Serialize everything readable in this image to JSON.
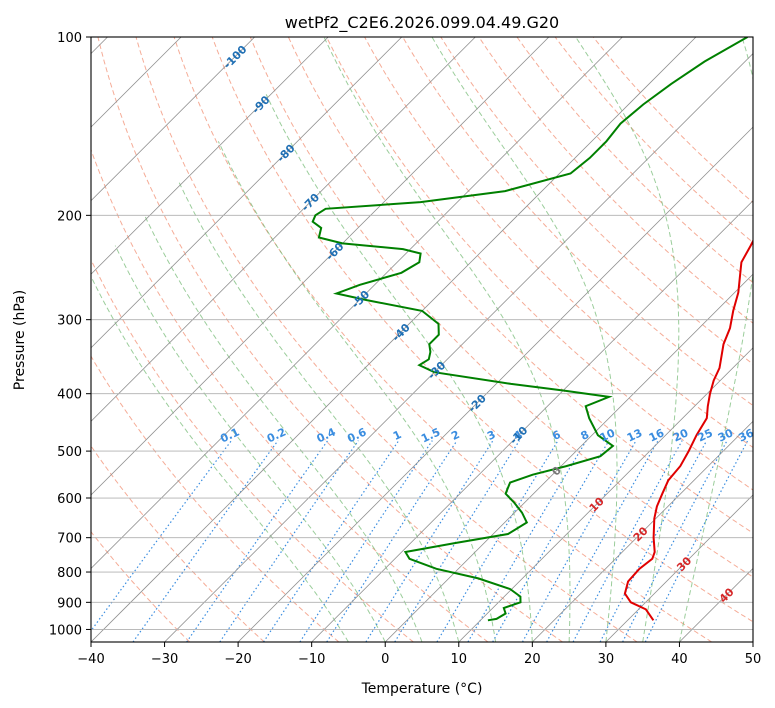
{
  "chart_data": {
    "type": "line",
    "chart_kind": "Skew-T log-P diagram",
    "title": "wetPf2_C2E6.2026.099.04.49.G20",
    "xlabel": "Temperature (°C)",
    "ylabel": "Pressure (hPa)",
    "x_range": [
      -40,
      50
    ],
    "y_range": [
      1050,
      100
    ],
    "y_scale": "log",
    "x_ticks": [
      "−40",
      "−30",
      "−20",
      "−10",
      "0",
      "10",
      "20",
      "30",
      "40",
      "50"
    ],
    "y_ticks": [
      "100",
      "200",
      "300",
      "400",
      "500",
      "600",
      "700",
      "800",
      "900",
      "1000"
    ],
    "grid": true,
    "legend": "none",
    "series": [
      {
        "color": "#e00000",
        "points": [
          [
            33.5,
            965
          ],
          [
            31,
            925
          ],
          [
            28,
            900
          ],
          [
            26,
            870
          ],
          [
            24.8,
            830
          ],
          [
            24.6,
            790
          ],
          [
            25,
            760
          ],
          [
            24.4,
            740
          ],
          [
            22.3,
            700
          ],
          [
            19.8,
            650
          ],
          [
            18.5,
            620
          ],
          [
            17.5,
            590
          ],
          [
            16.5,
            560
          ],
          [
            16.2,
            530
          ],
          [
            15.3,
            500
          ],
          [
            14.2,
            470
          ],
          [
            13.3,
            440
          ],
          [
            11.8,
            420
          ],
          [
            10.4,
            400
          ],
          [
            9.1,
            380
          ],
          [
            8.2,
            362
          ],
          [
            6.8,
            345
          ],
          [
            5.5,
            330
          ],
          [
            4.2,
            310
          ],
          [
            2.3,
            290
          ],
          [
            0.5,
            270
          ],
          [
            -1.3,
            255
          ],
          [
            -3.2,
            240
          ],
          [
            -4.2,
            225
          ],
          [
            -5.2,
            212
          ],
          [
            -6.5,
            200
          ],
          [
            -9.5,
            185
          ],
          [
            -11.8,
            170
          ],
          [
            -13.8,
            160
          ],
          [
            -16,
            150
          ],
          [
            -18,
            140
          ],
          [
            -20.2,
            130
          ],
          [
            -23,
            120
          ],
          [
            -25.5,
            112
          ],
          [
            -28,
            100
          ]
        ]
      },
      {
        "color": "#008000",
        "points": [
          [
            11,
            965
          ],
          [
            12,
            960
          ],
          [
            12.5,
            940
          ],
          [
            11.5,
            920
          ],
          [
            13,
            900
          ],
          [
            12.2,
            880
          ],
          [
            9.8,
            855
          ],
          [
            4,
            820
          ],
          [
            -3,
            790
          ],
          [
            -8,
            760
          ],
          [
            -9.5,
            740
          ],
          [
            -4,
            715
          ],
          [
            2,
            690
          ],
          [
            3,
            660
          ],
          [
            1,
            635
          ],
          [
            -1.5,
            610
          ],
          [
            -3.8,
            590
          ],
          [
            -4.7,
            565
          ],
          [
            -2.7,
            548
          ],
          [
            0.7,
            530
          ],
          [
            4,
            510
          ],
          [
            4.3,
            490
          ],
          [
            0.8,
            470
          ],
          [
            -2.7,
            440
          ],
          [
            -4.8,
            420
          ],
          [
            -2.9,
            405
          ],
          [
            -10,
            395
          ],
          [
            -18,
            385
          ],
          [
            -30,
            368
          ],
          [
            -33,
            358
          ],
          [
            -32.5,
            350
          ],
          [
            -33.3,
            340
          ],
          [
            -34.5,
            330
          ],
          [
            -34.5,
            318
          ],
          [
            -36,
            305
          ],
          [
            -40,
            290
          ],
          [
            -49,
            278
          ],
          [
            -54,
            271
          ],
          [
            -52,
            262
          ],
          [
            -48,
            250
          ],
          [
            -47,
            240
          ],
          [
            -48,
            232
          ],
          [
            -51,
            228
          ],
          [
            -60,
            223
          ],
          [
            -64,
            218
          ],
          [
            -65,
            210
          ],
          [
            -67,
            205
          ],
          [
            -67.5,
            200
          ],
          [
            -67,
            195
          ],
          [
            -55,
            190
          ],
          [
            -45,
            182
          ],
          [
            -38.5,
            170
          ],
          [
            -38,
            160
          ],
          [
            -38,
            150
          ],
          [
            -38.5,
            140
          ],
          [
            -38,
            130
          ],
          [
            -37,
            120
          ],
          [
            -35.5,
            110
          ],
          [
            -33,
            100
          ]
        ]
      }
    ],
    "dry_adiabats_C": [
      -30,
      -20,
      -10,
      0,
      10,
      20,
      30,
      40,
      50,
      60,
      70,
      80,
      90,
      100,
      110,
      120,
      130,
      140,
      150
    ],
    "moist_adiabats_C": [
      -5,
      0,
      5,
      10,
      15,
      20,
      25,
      30,
      35,
      40
    ],
    "mixing_ratio_lines_gkg": [
      0.1,
      0.2,
      0.4,
      0.6,
      1,
      1.5,
      2,
      3,
      4,
      6,
      8,
      10,
      13,
      16,
      20,
      25,
      30,
      36
    ],
    "mixing_ratio_labels": [
      "0.1",
      "0.2",
      "0.4",
      "0.6",
      "1",
      "1.5",
      "2",
      "3",
      "4",
      "6",
      "8",
      "10",
      "13",
      "16",
      "20",
      "25",
      "30",
      "36"
    ],
    "mixing_ratio_label_pressure": 480,
    "isotherm_labels": [
      {
        "text": "-100",
        "t": -100,
        "p": 108
      },
      {
        "text": "-90",
        "t": -90,
        "p": 130
      },
      {
        "text": "-80",
        "t": -80,
        "p": 157
      },
      {
        "text": "-70",
        "t": -70,
        "p": 190
      },
      {
        "text": "-60",
        "t": -60,
        "p": 230
      },
      {
        "text": "-50",
        "t": -50,
        "p": 277
      },
      {
        "text": "-40",
        "t": -40,
        "p": 315
      },
      {
        "text": "-30",
        "t": -30,
        "p": 365
      },
      {
        "text": "-20",
        "t": -20,
        "p": 415
      },
      {
        "text": "-10",
        "t": -10,
        "p": 470
      }
    ],
    "isotherm_label_color": "#1f6fb4",
    "other_labels": [
      {
        "text": "0",
        "t": 0,
        "p": 540,
        "color": "#777777"
      },
      {
        "text": "10",
        "t": 10,
        "p": 615,
        "color": "#d62728"
      },
      {
        "text": "20",
        "t": 20,
        "p": 690,
        "color": "#d62728"
      },
      {
        "text": "30",
        "t": 30,
        "p": 775,
        "color": "#d62728"
      },
      {
        "text": "40",
        "t": 40,
        "p": 875,
        "color": "#d62728"
      }
    ],
    "colors": {
      "dry_adiabat": "#f08060",
      "moist_adiabat": "#70b870",
      "mixing_ratio": "#3a8de0",
      "isotherm": "#909090",
      "isobar": "#b0b0b0"
    }
  }
}
